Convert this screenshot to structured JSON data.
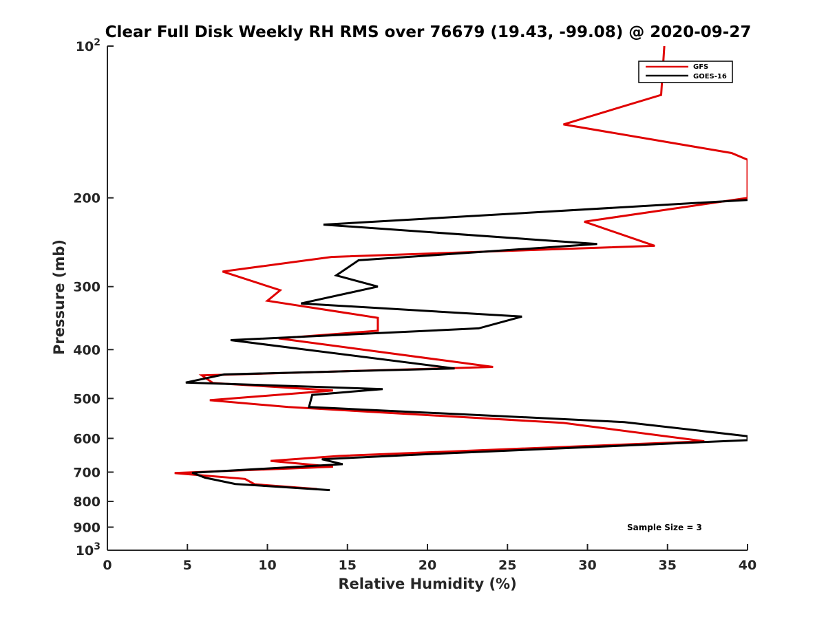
{
  "chart_data": {
    "type": "line",
    "title": "Clear Full Disk Weekly RH RMS over 76679 (19.43, -99.08) @ 2020-09-27",
    "xlabel": "Relative Humidity (%)",
    "ylabel": "Pressure (mb)",
    "xlim": [
      0,
      40
    ],
    "ylim": [
      100,
      1000
    ],
    "yscale": "log",
    "y_reversed": true,
    "grid": false,
    "legend_position": "top-right",
    "x_ticks": [
      "0",
      "5",
      "10",
      "15",
      "20",
      "25",
      "30",
      "35",
      "40"
    ],
    "y_ticks": [
      {
        "value": 100,
        "base": "10",
        "exp": "2"
      },
      {
        "value": 200,
        "label": "200"
      },
      {
        "value": 300,
        "label": "300"
      },
      {
        "value": 400,
        "label": "400"
      },
      {
        "value": 500,
        "label": "500"
      },
      {
        "value": 600,
        "label": "600"
      },
      {
        "value": 700,
        "label": "700"
      },
      {
        "value": 800,
        "label": "800"
      },
      {
        "value": 900,
        "label": "900"
      },
      {
        "value": 1000,
        "base": "10",
        "exp": "3"
      }
    ],
    "series": [
      {
        "name": "GFS",
        "color": "#e00000",
        "points": [
          [
            34.8,
            100
          ],
          [
            34.6,
            125
          ],
          [
            28.5,
            143
          ],
          [
            39,
            163
          ],
          [
            40,
            168
          ],
          [
            40,
            200
          ],
          [
            29.8,
            223
          ],
          [
            34.2,
            249
          ],
          [
            14,
            262
          ],
          [
            7.2,
            280
          ],
          [
            10.8,
            305
          ],
          [
            10,
            320
          ],
          [
            16.9,
            346
          ],
          [
            16.9,
            367
          ],
          [
            10.7,
            380
          ],
          [
            24.1,
            433
          ],
          [
            5.9,
            450
          ],
          [
            6.6,
            466
          ],
          [
            14.1,
            482
          ],
          [
            6.4,
            504
          ],
          [
            11.3,
            520
          ],
          [
            28.5,
            559
          ],
          [
            37.3,
            608
          ],
          [
            14.5,
            650
          ],
          [
            10.2,
            665
          ],
          [
            14.1,
            683
          ],
          [
            4.2,
            703
          ],
          [
            8.6,
            722
          ],
          [
            9.2,
            740
          ],
          [
            13.1,
            756
          ]
        ]
      },
      {
        "name": "GOES-16",
        "color": "#000000",
        "points": [
          [
            40,
            202
          ],
          [
            13.5,
            226
          ],
          [
            30.6,
            247
          ],
          [
            15.7,
            266
          ],
          [
            14.3,
            285
          ],
          [
            16.9,
            300
          ],
          [
            12.1,
            324
          ],
          [
            25.9,
            344
          ],
          [
            23.2,
            363
          ],
          [
            7.7,
            383
          ],
          [
            21.7,
            436
          ],
          [
            7.3,
            448
          ],
          [
            4.9,
            465
          ],
          [
            17.2,
            479
          ],
          [
            12.8,
            492
          ],
          [
            12.6,
            520
          ],
          [
            28.8,
            550
          ],
          [
            32.3,
            557
          ],
          [
            40,
            594
          ],
          [
            40,
            605
          ],
          [
            20.9,
            643
          ],
          [
            13.4,
            660
          ],
          [
            14.7,
            675
          ],
          [
            5.3,
            702
          ],
          [
            6.1,
            718
          ],
          [
            8,
            739
          ],
          [
            13.9,
            760
          ]
        ]
      }
    ],
    "annotations": [
      "Sample Size = 3"
    ]
  }
}
